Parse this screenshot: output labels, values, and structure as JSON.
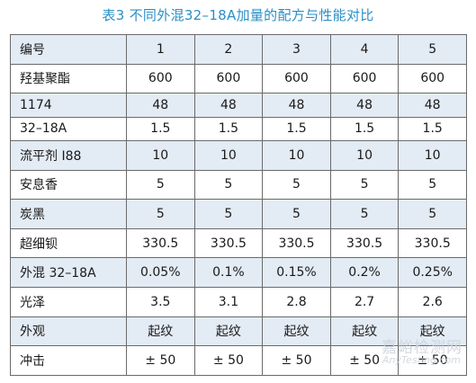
{
  "title": "表3 不同外混32–18A加量的配方与性能对比",
  "table": {
    "header": [
      "编号",
      "1",
      "2",
      "3",
      "4",
      "5"
    ],
    "rows": [
      [
        "羟基聚酯",
        "600",
        "600",
        "600",
        "600",
        "600"
      ],
      [
        "1174",
        "48",
        "48",
        "48",
        "48",
        "48"
      ],
      [
        "32–18A",
        "1.5",
        "1.5",
        "1.5",
        "1.5",
        "1.5"
      ],
      [
        "流平剂 I88",
        "10",
        "10",
        "10",
        "10",
        "10"
      ],
      [
        "安息香",
        "5",
        "5",
        "5",
        "5",
        "5"
      ],
      [
        "炭黑",
        "5",
        "5",
        "5",
        "5",
        "5"
      ],
      [
        "超细钡",
        "330.5",
        "330.5",
        "330.5",
        "330.5",
        "330.5"
      ],
      [
        "外混 32–18A",
        "0.05%",
        "0.1%",
        "0.15%",
        "0.2%",
        "0.25%"
      ],
      [
        "光泽",
        "3.5",
        "3.1",
        "2.8",
        "2.7",
        "2.6"
      ],
      [
        "外观",
        "起纹",
        "起纹",
        "起纹",
        "起纹",
        "起纹"
      ],
      [
        "冲击",
        "± 50",
        "± 50",
        "± 50",
        "± 50",
        "± 50"
      ]
    ]
  },
  "watermark": {
    "cn": "嘉峪检测网",
    "en": "AnyTesting.com"
  },
  "colors": {
    "title": "#2a8fc6",
    "band": "#e3ebf4",
    "border": "#6a6a6a"
  }
}
